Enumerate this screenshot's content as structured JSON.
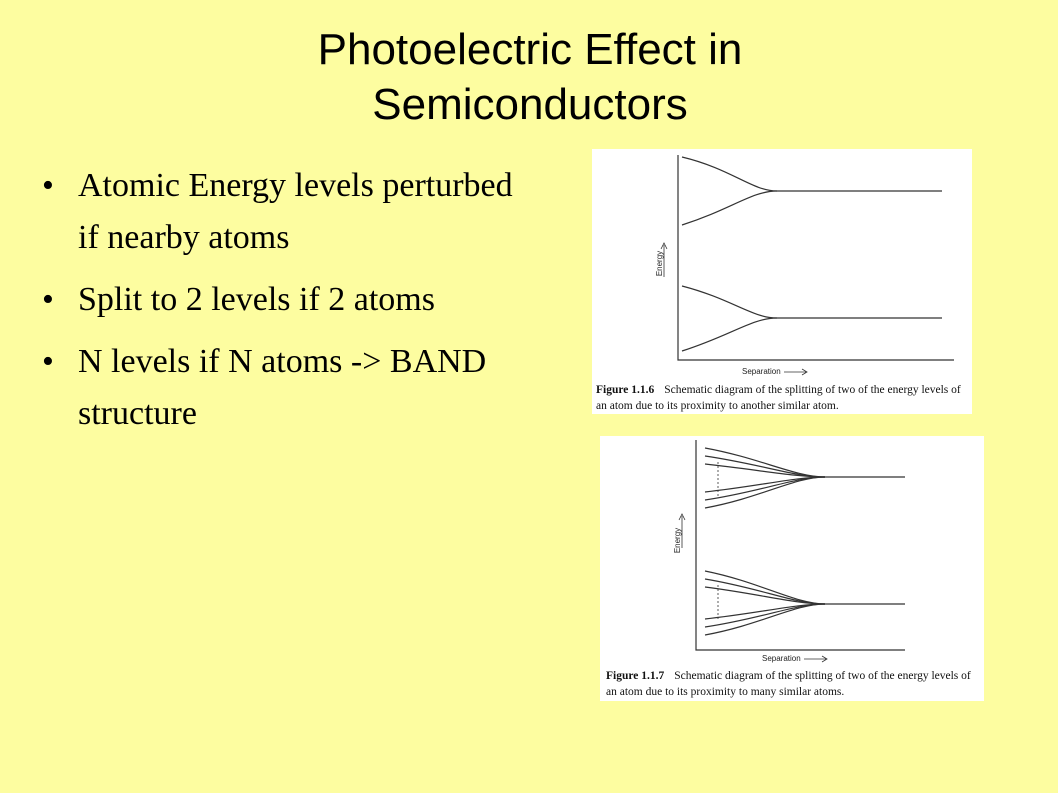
{
  "title": "Photoelectric Effect in Semiconductors",
  "bullets": [
    "Atomic Energy levels perturbed if nearby atoms",
    "Split to 2 levels if 2 atoms",
    "N levels if N atoms -> BAND structure"
  ],
  "figures": [
    {
      "y_label": "Energy",
      "x_label": "Separation",
      "label": "Figure 1.1.6",
      "caption": "Schematic diagram of the splitting of two of the energy levels of an atom due to its proximity to another similar atom."
    },
    {
      "y_label": "Energy",
      "x_label": "Separation",
      "label": "Figure 1.1.7",
      "caption": "Schematic diagram of the splitting of two of the energy levels of an atom due to its proximity to many similar atoms."
    }
  ]
}
